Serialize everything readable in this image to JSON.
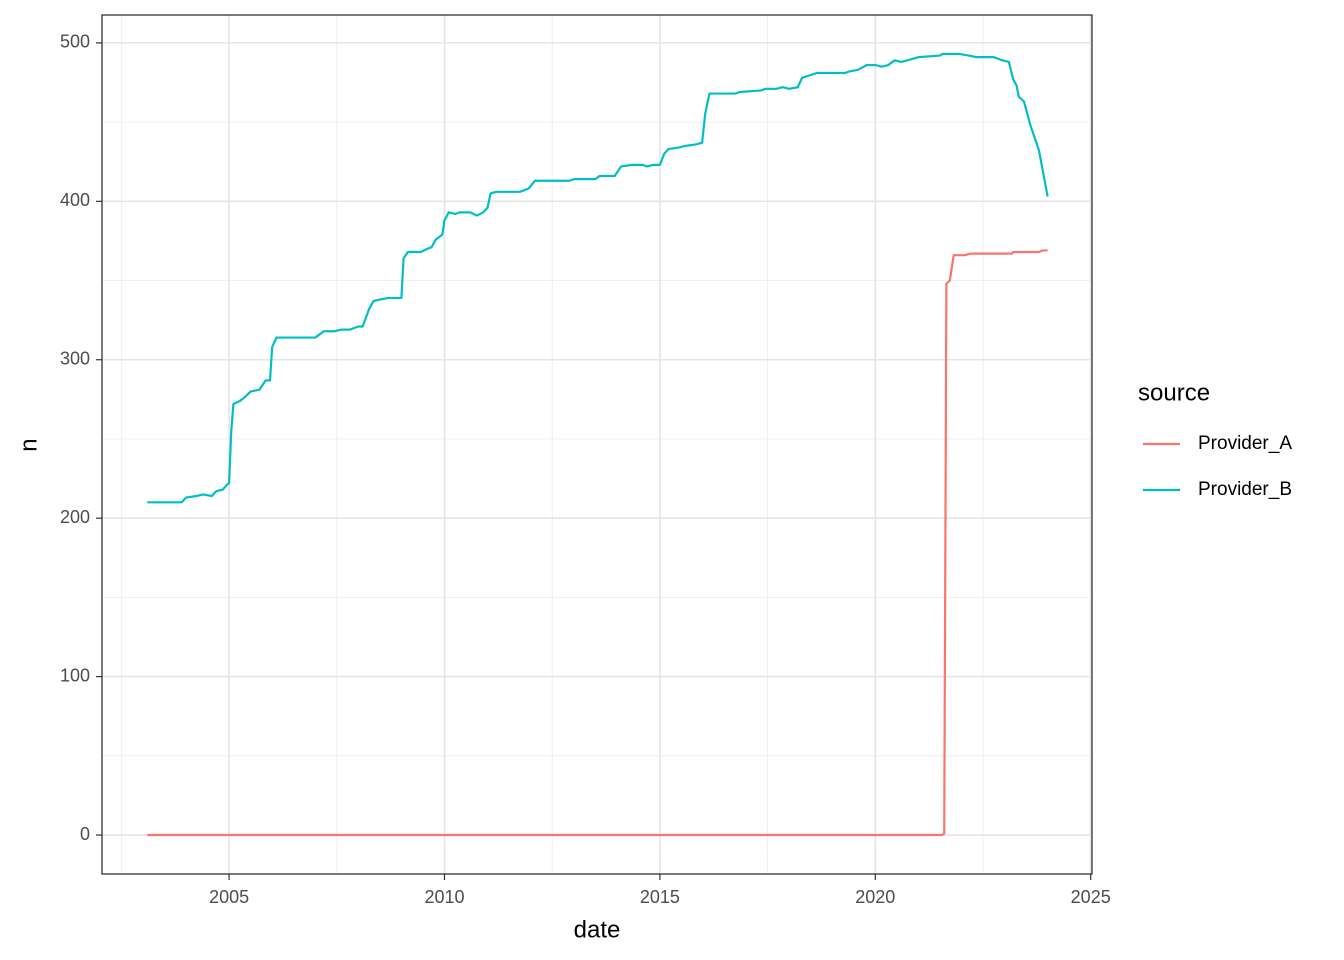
{
  "chart_data": {
    "type": "line",
    "x_label": "date",
    "y_label": "n",
    "xlim": [
      2002.05,
      2025.03
    ],
    "ylim": [
      -24.6,
      517.6
    ],
    "xticks": [
      2005,
      2010,
      2015,
      2020,
      2025
    ],
    "yticks": [
      0,
      100,
      200,
      300,
      400,
      500
    ],
    "grid": true,
    "legend_title": "source",
    "legend_position": "right",
    "series": [
      {
        "name": "Provider_A",
        "color": "#F8766D",
        "x": [
          2003.1,
          2021.55,
          2021.6,
          2021.65,
          2021.73,
          2021.82,
          2022.08,
          2022.2,
          2023.17,
          2023.2,
          2023.8,
          2023.88,
          2024.0
        ],
        "values": [
          0,
          0,
          1,
          348,
          350,
          366,
          366,
          367,
          367,
          368,
          368,
          369,
          369
        ]
      },
      {
        "name": "Provider_B",
        "color": "#00BFC4",
        "x": [
          2003.1,
          2003.9,
          2004.0,
          2004.25,
          2004.4,
          2004.6,
          2004.7,
          2004.85,
          2004.95,
          2005.0,
          2005.05,
          2005.1,
          2005.25,
          2005.35,
          2005.5,
          2005.7,
          2005.85,
          2005.95,
          2006.0,
          2006.1,
          2007.0,
          2007.2,
          2007.45,
          2007.6,
          2007.8,
          2008.0,
          2008.1,
          2008.25,
          2008.35,
          2008.5,
          2008.7,
          2009.0,
          2009.05,
          2009.15,
          2009.45,
          2009.6,
          2009.7,
          2009.8,
          2009.95,
          2010.0,
          2010.1,
          2010.25,
          2010.35,
          2010.6,
          2010.75,
          2010.9,
          2011.0,
          2011.07,
          2011.2,
          2011.75,
          2011.95,
          2012.1,
          2012.9,
          2013.0,
          2013.5,
          2013.6,
          2013.95,
          2014.1,
          2014.35,
          2014.6,
          2014.7,
          2014.85,
          2015.0,
          2015.1,
          2015.2,
          2015.45,
          2015.6,
          2015.85,
          2015.98,
          2016.05,
          2016.15,
          2016.75,
          2016.85,
          2017.35,
          2017.45,
          2017.7,
          2017.85,
          2018.0,
          2018.2,
          2018.3,
          2018.65,
          2019.3,
          2019.4,
          2019.6,
          2019.8,
          2020.0,
          2020.15,
          2020.3,
          2020.45,
          2020.6,
          2020.75,
          2021.0,
          2021.5,
          2021.55,
          2021.95,
          2022.17,
          2022.35,
          2022.75,
          2022.95,
          2023.1,
          2023.2,
          2023.28,
          2023.33,
          2023.45,
          2023.5,
          2023.6,
          2023.8,
          2023.89,
          2024.0
        ],
        "values": [
          210,
          210,
          213,
          214,
          215,
          214,
          217,
          218,
          221,
          222,
          255,
          272,
          274,
          276,
          280,
          281,
          287,
          287,
          308,
          314,
          314,
          318,
          318,
          319,
          319,
          321,
          321,
          332,
          337,
          338,
          339,
          339,
          364,
          368,
          368,
          370,
          371,
          376,
          379,
          388,
          393,
          392,
          393,
          393,
          391,
          393,
          396,
          405,
          406,
          406,
          408,
          413,
          413,
          414,
          414,
          416,
          416,
          422,
          423,
          423,
          422,
          423,
          423,
          430,
          433,
          434,
          435,
          436,
          437,
          455,
          468,
          468,
          469,
          470,
          471,
          471,
          472,
          471,
          472,
          478,
          481,
          481,
          482,
          483,
          486,
          486,
          485,
          486,
          489,
          488,
          489,
          491,
          492,
          493,
          493,
          492,
          491,
          491,
          489,
          488,
          477,
          473,
          466,
          463,
          458,
          448,
          432,
          419,
          403
        ]
      }
    ]
  }
}
